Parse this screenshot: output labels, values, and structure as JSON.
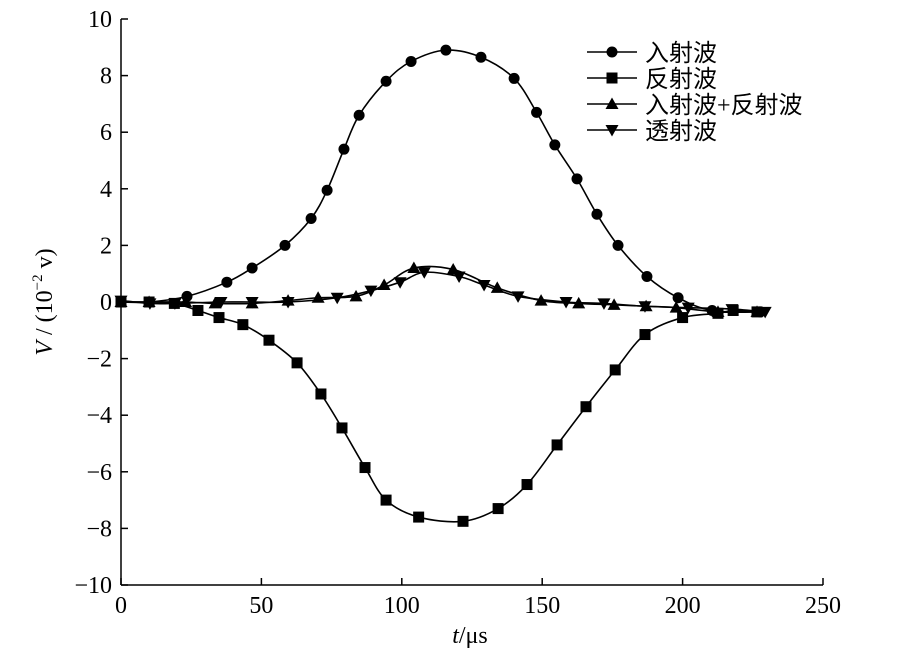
{
  "chart_data": {
    "type": "line",
    "title": "",
    "xlabel": "t/μs",
    "xlabel_var": "t",
    "xlabel_unit": "/μs",
    "ylabel": "V/(10^-2 v)",
    "ylabel_parts": {
      "var": "V",
      "pre": " / (10",
      "exp": "−2",
      "post": " v)"
    },
    "xlim": [
      0,
      250
    ],
    "ylim": [
      -10,
      10
    ],
    "xticks": [
      0,
      50,
      100,
      150,
      200,
      250
    ],
    "yticks": [
      10,
      8,
      6,
      4,
      2,
      0,
      -2,
      -4,
      -6,
      -8,
      -10
    ],
    "ytick_labels": [
      "10",
      "8",
      "6",
      "4",
      "2",
      "0",
      "−2",
      "−4",
      "−6",
      "−8",
      "−10"
    ],
    "grid": false,
    "legend_position": "top-right",
    "series": [
      {
        "name": "入射波",
        "marker": "circle",
        "x": [
          0,
          10,
          23.5,
          37.7,
          46.7,
          58.4,
          67.7,
          73.4,
          79.4,
          84.8,
          94.4,
          103.3,
          115.7,
          128.2,
          140,
          148,
          154.5,
          162.4,
          169.5,
          177,
          187.3,
          198.4,
          210.5,
          227.6
        ],
        "y": [
          0,
          0,
          0.2,
          0.7,
          1.2,
          2.0,
          2.95,
          3.95,
          5.4,
          6.6,
          7.8,
          8.5,
          8.9,
          8.65,
          7.9,
          6.7,
          5.55,
          4.35,
          3.1,
          2.0,
          0.9,
          0.15,
          -0.3,
          -0.35
        ]
      },
      {
        "name": "反射波",
        "marker": "square",
        "x": [
          0,
          10,
          19,
          27.4,
          34.9,
          43.4,
          52.7,
          62.7,
          71.2,
          78.7,
          86.9,
          94.4,
          106,
          121.8,
          134.3,
          144.6,
          155.3,
          165.6,
          176,
          186.6,
          200,
          212.6,
          218,
          226.5
        ],
        "y": [
          0,
          0,
          -0.05,
          -0.3,
          -0.55,
          -0.8,
          -1.35,
          -2.15,
          -3.25,
          -4.45,
          -5.85,
          -7.0,
          -7.6,
          -7.75,
          -7.3,
          -6.45,
          -5.05,
          -3.7,
          -2.4,
          -1.15,
          -0.55,
          -0.4,
          -0.3,
          -0.35
        ]
      },
      {
        "name": "入射波+反射波",
        "marker": "triangle-up",
        "x": [
          0,
          10,
          23,
          33.5,
          46.7,
          59.5,
          70.2,
          83.7,
          93.7,
          104.3,
          118.3,
          134,
          149.6,
          163,
          175.6,
          187,
          197.7,
          212.6,
          226.5
        ],
        "y": [
          0,
          0,
          0,
          -0.05,
          -0.05,
          0.05,
          0.15,
          0.2,
          0.6,
          1.2,
          1.15,
          0.5,
          0.05,
          -0.05,
          -0.1,
          -0.15,
          -0.2,
          -0.35,
          -0.35
        ]
      },
      {
        "name": "透射波",
        "marker": "triangle-down",
        "x": [
          0,
          10.3,
          19.2,
          35.6,
          46.7,
          59.5,
          77,
          89,
          99.4,
          108,
          120.4,
          129.3,
          141.4,
          158.5,
          172,
          186.6,
          202,
          217.6,
          229.4
        ],
        "y": [
          0.05,
          -0.05,
          -0.05,
          0,
          0,
          0,
          0.15,
          0.4,
          0.7,
          1.05,
          0.9,
          0.6,
          0.2,
          0,
          -0.05,
          -0.15,
          -0.2,
          -0.25,
          -0.35
        ]
      }
    ]
  }
}
